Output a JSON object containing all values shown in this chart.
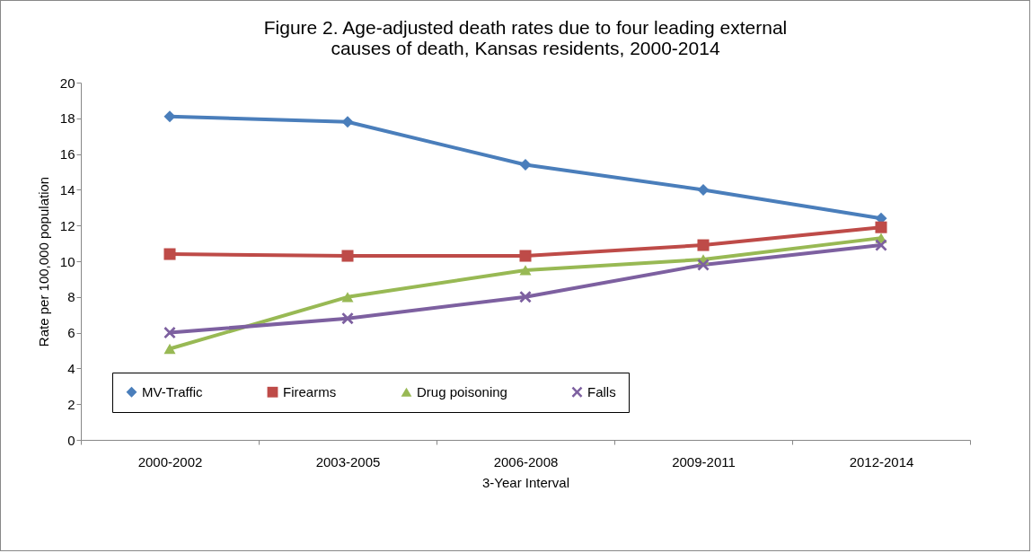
{
  "chart_data": {
    "type": "line",
    "title": "Figure 2. Age-adjusted death rates due to four leading external causes of death, Kansas residents, 2000-2014",
    "xlabel": "3-Year Interval",
    "ylabel": "Rate per 100,000 population",
    "categories": [
      "2000-2002",
      "2003-2005",
      "2006-2008",
      "2009-2011",
      "2012-2014"
    ],
    "series": [
      {
        "name": "MV-Traffic",
        "color": "#4a7ebb",
        "marker": "diamond",
        "values": [
          18.1,
          17.8,
          15.4,
          14.0,
          12.4
        ]
      },
      {
        "name": "Firearms",
        "color": "#be4b48",
        "marker": "square",
        "values": [
          10.4,
          10.3,
          10.3,
          10.9,
          11.9
        ]
      },
      {
        "name": "Drug poisoning",
        "color": "#98b954",
        "marker": "triangle",
        "values": [
          5.1,
          8.0,
          9.5,
          10.1,
          11.3
        ]
      },
      {
        "name": "Falls",
        "color": "#7d60a0",
        "marker": "cross",
        "values": [
          6.0,
          6.8,
          8.0,
          9.8,
          10.9
        ]
      }
    ],
    "ylim": [
      0,
      20
    ],
    "yticks": [
      0,
      2,
      4,
      6,
      8,
      10,
      12,
      14,
      16,
      18,
      20
    ],
    "grid": false,
    "legend": "bottom",
    "line_style": "solid"
  }
}
